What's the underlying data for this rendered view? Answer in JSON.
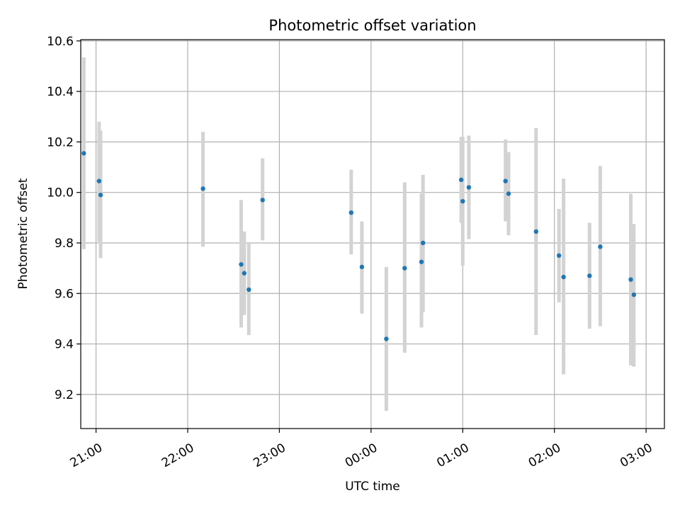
{
  "chart_data": {
    "type": "scatter",
    "title": "Photometric offset variation",
    "xlabel": "UTC time",
    "ylabel": "Photometric offset",
    "x_unit": "time of day (UTC)",
    "xlim": [
      "20:50",
      "03:12"
    ],
    "ylim": [
      9.065,
      10.605
    ],
    "x_tick_labels": [
      "21:00",
      "22:00",
      "23:00",
      "00:00",
      "01:00",
      "02:00",
      "03:00"
    ],
    "y_tick_labels": [
      "9.2",
      "9.4",
      "9.6",
      "9.8",
      "10.0",
      "10.2",
      "10.4",
      "10.6"
    ],
    "grid": true,
    "point_color": "#1f77b4",
    "errorbar_color": "#d3d3d3",
    "points": [
      {
        "time": "20:52",
        "y": 10.155,
        "lo": 9.775,
        "hi": 10.535
      },
      {
        "time": "21:02",
        "y": 10.045,
        "lo": 9.805,
        "hi": 10.28
      },
      {
        "time": "21:03",
        "y": 9.99,
        "lo": 9.74,
        "hi": 10.245
      },
      {
        "time": "22:10",
        "y": 10.015,
        "lo": 9.785,
        "hi": 10.24
      },
      {
        "time": "22:35",
        "y": 9.715,
        "lo": 9.465,
        "hi": 9.97
      },
      {
        "time": "22:37",
        "y": 9.68,
        "lo": 9.515,
        "hi": 9.845
      },
      {
        "time": "22:40",
        "y": 9.615,
        "lo": 9.435,
        "hi": 9.8
      },
      {
        "time": "22:49",
        "y": 9.97,
        "lo": 9.81,
        "hi": 10.135
      },
      {
        "time": "23:47",
        "y": 9.92,
        "lo": 9.755,
        "hi": 10.09
      },
      {
        "time": "23:54",
        "y": 9.705,
        "lo": 9.52,
        "hi": 9.885
      },
      {
        "time": "00:10",
        "y": 9.42,
        "lo": 9.135,
        "hi": 9.705
      },
      {
        "time": "00:22",
        "y": 9.7,
        "lo": 9.365,
        "hi": 10.04
      },
      {
        "time": "00:33",
        "y": 9.725,
        "lo": 9.465,
        "hi": 9.995
      },
      {
        "time": "00:34",
        "y": 9.8,
        "lo": 9.525,
        "hi": 10.07
      },
      {
        "time": "00:59",
        "y": 10.05,
        "lo": 9.88,
        "hi": 10.22
      },
      {
        "time": "01:00",
        "y": 9.965,
        "lo": 9.71,
        "hi": 10.22
      },
      {
        "time": "01:04",
        "y": 10.02,
        "lo": 9.815,
        "hi": 10.225
      },
      {
        "time": "01:28",
        "y": 10.045,
        "lo": 9.885,
        "hi": 10.21
      },
      {
        "time": "01:30",
        "y": 9.995,
        "lo": 9.83,
        "hi": 10.16
      },
      {
        "time": "01:48",
        "y": 9.845,
        "lo": 9.435,
        "hi": 10.255
      },
      {
        "time": "02:03",
        "y": 9.75,
        "lo": 9.565,
        "hi": 9.935
      },
      {
        "time": "02:06",
        "y": 9.665,
        "lo": 9.28,
        "hi": 10.055
      },
      {
        "time": "02:23",
        "y": 9.67,
        "lo": 9.46,
        "hi": 9.88
      },
      {
        "time": "02:30",
        "y": 9.785,
        "lo": 9.47,
        "hi": 10.105
      },
      {
        "time": "02:50",
        "y": 9.655,
        "lo": 9.315,
        "hi": 9.995
      },
      {
        "time": "02:52",
        "y": 9.595,
        "lo": 9.31,
        "hi": 9.875
      }
    ]
  }
}
